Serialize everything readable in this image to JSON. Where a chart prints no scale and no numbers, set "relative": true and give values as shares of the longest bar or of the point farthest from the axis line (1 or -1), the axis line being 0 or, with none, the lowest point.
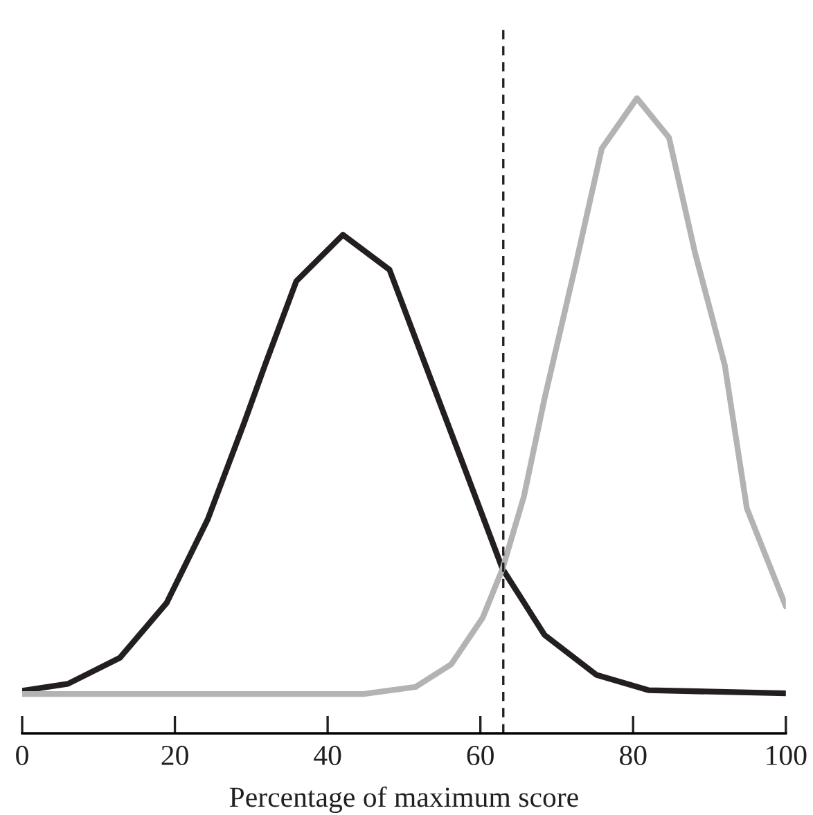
{
  "chart_data": {
    "type": "line",
    "xlabel": "Percentage of maximum score",
    "relative": true,
    "xlim": [
      0,
      100
    ],
    "xticks": [
      0,
      20,
      40,
      60,
      80,
      100
    ],
    "grid": false,
    "legend": false,
    "marker": "none",
    "line_style": "solid",
    "series": [
      {
        "color": "#231f20",
        "x": [
          0,
          6,
          12.8,
          18.9,
          24.3,
          29.1,
          31.8,
          35.9,
          42.0,
          48.1,
          53.5,
          58.2,
          62.9,
          68.4,
          75.2,
          82,
          100
        ],
        "values": [
          0.067,
          0.078,
          0.119,
          0.205,
          0.337,
          0.49,
          0.58,
          0.712,
          0.785,
          0.73,
          0.558,
          0.409,
          0.259,
          0.155,
          0.092,
          0.068,
          0.063
        ]
      },
      {
        "color": "#b3b3b6",
        "x": [
          0,
          20,
          44.7,
          51.5,
          56.2,
          60.3,
          62.9,
          65.7,
          68.4,
          72.5,
          75.9,
          80.5,
          84.7,
          88.1,
          92.0,
          94.9,
          100
        ],
        "values": [
          0.062,
          0.062,
          0.062,
          0.073,
          0.109,
          0.182,
          0.259,
          0.373,
          0.527,
          0.739,
          0.921,
          1.0,
          0.938,
          0.757,
          0.58,
          0.354,
          0.2
        ]
      }
    ],
    "ref_lines": [
      {
        "axis": "x",
        "value": 63,
        "color": "#231f20",
        "line_style": "dashed"
      }
    ]
  }
}
